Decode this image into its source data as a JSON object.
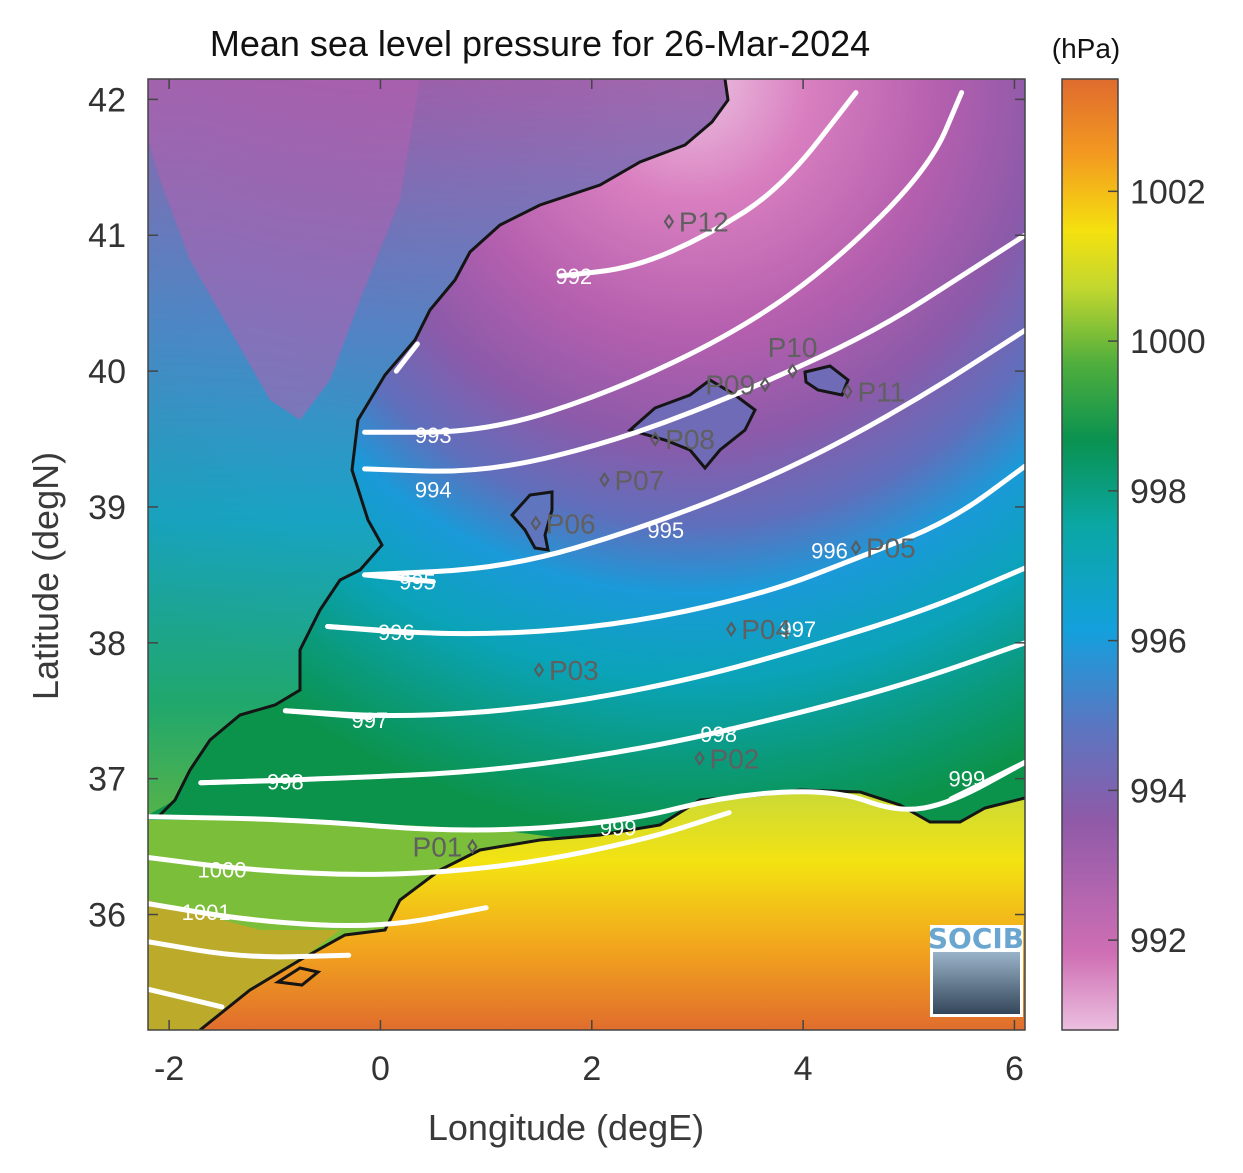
{
  "title": "Mean sea level pressure for 26-Mar-2024",
  "xlabel": "Longitude (degE)",
  "ylabel": "Latitude (degN)",
  "units": "(hPa)",
  "logo": "SOCIB",
  "x_ticks": [
    "-2",
    "0",
    "2",
    "4",
    "6"
  ],
  "y_ticks": [
    "36",
    "37",
    "38",
    "39",
    "40",
    "41",
    "42"
  ],
  "colorbar_ticks": [
    "992",
    "994",
    "996",
    "998",
    "1000",
    "1002"
  ],
  "chart_data": {
    "type": "heatmap",
    "title": "Mean sea level pressure for 26-Mar-2024",
    "xlabel": "Longitude (degE)",
    "ylabel": "Latitude (degN)",
    "xlim": [
      -2.2,
      6.1
    ],
    "ylim": [
      35.15,
      42.15
    ],
    "colorbar": {
      "label": "(hPa)",
      "range": [
        990.8,
        1003.5
      ],
      "ticks": [
        992,
        994,
        996,
        998,
        1000,
        1002
      ]
    },
    "isobars": [
      {
        "level": "992",
        "points": [
          [
            1.7,
            40.7
          ],
          [
            2.4,
            40.76
          ],
          [
            3.1,
            41.0
          ],
          [
            3.8,
            41.35
          ],
          [
            4.5,
            42.05
          ]
        ],
        "label_at": [
          1.83,
          40.7
        ]
      },
      {
        "level": "993",
        "points": [
          [
            -0.15,
            39.55
          ],
          [
            1.0,
            39.55
          ],
          [
            2.2,
            39.85
          ],
          [
            3.4,
            40.3
          ],
          [
            4.3,
            40.8
          ],
          [
            5.2,
            41.5
          ],
          [
            5.5,
            42.05
          ]
        ],
        "label_at": [
          0.5,
          39.53
        ]
      },
      {
        "level": "993",
        "points": [
          [
            0.35,
            40.2
          ],
          [
            0.15,
            40.0
          ]
        ],
        "label_at": null
      },
      {
        "level": "994",
        "points": [
          [
            -0.15,
            39.28
          ],
          [
            1.0,
            39.25
          ],
          [
            2.3,
            39.5
          ],
          [
            3.6,
            39.9
          ],
          [
            4.7,
            40.3
          ],
          [
            5.6,
            40.75
          ],
          [
            6.1,
            41.0
          ]
        ],
        "label_at": [
          0.5,
          39.13
        ]
      },
      {
        "level": "995",
        "points": [
          [
            -0.15,
            38.5
          ],
          [
            1.2,
            38.55
          ],
          [
            2.5,
            38.85
          ],
          [
            3.8,
            39.25
          ],
          [
            5.0,
            39.75
          ],
          [
            6.1,
            40.3
          ]
        ],
        "label_at": [
          2.7,
          38.83
        ]
      },
      {
        "level": "995",
        "points": [
          [
            -0.15,
            38.5
          ],
          [
            0.5,
            38.45
          ]
        ],
        "label_at": [
          0.35,
          38.45
        ]
      },
      {
        "level": "996",
        "points": [
          [
            -0.5,
            38.12
          ],
          [
            0.8,
            38.05
          ],
          [
            2.2,
            38.12
          ],
          [
            3.6,
            38.35
          ],
          [
            4.6,
            38.65
          ],
          [
            5.4,
            38.9
          ],
          [
            6.1,
            39.3
          ]
        ],
        "label_at": [
          4.25,
          38.68
        ]
      },
      {
        "level": "996",
        "points": [
          [
            -0.5,
            38.12
          ],
          [
            0.3,
            38.07
          ]
        ],
        "label_at": [
          0.15,
          38.08
        ]
      },
      {
        "level": "997",
        "points": [
          [
            -0.9,
            37.5
          ],
          [
            0.2,
            37.45
          ],
          [
            1.5,
            37.52
          ],
          [
            2.9,
            37.72
          ],
          [
            4.1,
            37.98
          ],
          [
            5.2,
            38.25
          ],
          [
            6.1,
            38.55
          ]
        ],
        "label_at": [
          3.95,
          38.1
        ]
      },
      {
        "level": "997",
        "points": [
          [
            -0.9,
            37.5
          ],
          [
            -0.1,
            37.45
          ]
        ],
        "label_at": [
          -0.1,
          37.43
        ]
      },
      {
        "level": "998",
        "points": [
          [
            -1.7,
            36.97
          ],
          [
            -0.5,
            37.0
          ],
          [
            1.0,
            37.05
          ],
          [
            2.5,
            37.22
          ],
          [
            3.8,
            37.45
          ],
          [
            5.0,
            37.7
          ],
          [
            6.1,
            38.0
          ]
        ],
        "label_at": [
          3.2,
          37.33
        ]
      },
      {
        "level": "998",
        "points": [
          [
            -1.7,
            36.97
          ],
          [
            -0.8,
            36.99
          ]
        ],
        "label_at": [
          -0.9,
          36.98
        ]
      },
      {
        "level": "999",
        "points": [
          [
            -2.2,
            36.72
          ],
          [
            -0.8,
            36.7
          ],
          [
            0.8,
            36.6
          ],
          [
            2.3,
            36.68
          ],
          [
            3.3,
            36.88
          ],
          [
            4.3,
            36.92
          ],
          [
            4.9,
            36.75
          ],
          [
            5.4,
            36.82
          ],
          [
            6.1,
            37.12
          ]
        ],
        "label_at": [
          2.25,
          36.64
        ]
      },
      {
        "level": "999",
        "points": [
          [
            5.4,
            36.85
          ],
          [
            6.1,
            37.12
          ]
        ],
        "label_at": [
          5.55,
          37.0
        ]
      },
      {
        "level": "1000",
        "points": [
          [
            -2.2,
            36.42
          ],
          [
            -1.3,
            36.33
          ],
          [
            0.0,
            36.28
          ],
          [
            1.3,
            36.36
          ],
          [
            2.5,
            36.55
          ],
          [
            3.3,
            36.75
          ]
        ],
        "label_at": [
          -1.5,
          36.33
        ]
      },
      {
        "level": "1001",
        "points": [
          [
            -2.2,
            36.08
          ],
          [
            -1.2,
            35.95
          ],
          [
            0.0,
            35.9
          ],
          [
            1.0,
            36.05
          ]
        ],
        "label_at": [
          -1.65,
          36.02
        ]
      },
      {
        "level": "",
        "points": [
          [
            -2.2,
            35.8
          ],
          [
            -1.3,
            35.68
          ],
          [
            -0.3,
            35.7
          ]
        ],
        "label_at": null
      },
      {
        "level": "",
        "points": [
          [
            -2.2,
            35.45
          ],
          [
            -1.5,
            35.32
          ]
        ],
        "label_at": null
      }
    ],
    "stations": [
      {
        "name": "P01",
        "lon": 0.87,
        "lat": 36.5,
        "label_side": "left"
      },
      {
        "name": "P02",
        "lon": 3.02,
        "lat": 37.15,
        "label_side": "right"
      },
      {
        "name": "P03",
        "lon": 1.5,
        "lat": 37.8,
        "label_side": "right"
      },
      {
        "name": "P04",
        "lon": 3.32,
        "lat": 38.1,
        "label_side": "right"
      },
      {
        "name": "P05",
        "lon": 4.5,
        "lat": 38.7,
        "label_side": "right"
      },
      {
        "name": "P06",
        "lon": 1.47,
        "lat": 38.88,
        "label_side": "right"
      },
      {
        "name": "P07",
        "lon": 2.12,
        "lat": 39.2,
        "label_side": "right"
      },
      {
        "name": "P08",
        "lon": 2.6,
        "lat": 39.5,
        "label_side": "right"
      },
      {
        "name": "P09",
        "lon": 3.64,
        "lat": 39.9,
        "label_side": "left"
      },
      {
        "name": "P10",
        "lon": 3.9,
        "lat": 40.0,
        "label_side": "top"
      },
      {
        "name": "P11",
        "lon": 4.42,
        "lat": 39.85,
        "label_side": "right"
      },
      {
        "name": "P12",
        "lon": 2.73,
        "lat": 41.1,
        "label_side": "right"
      }
    ]
  }
}
